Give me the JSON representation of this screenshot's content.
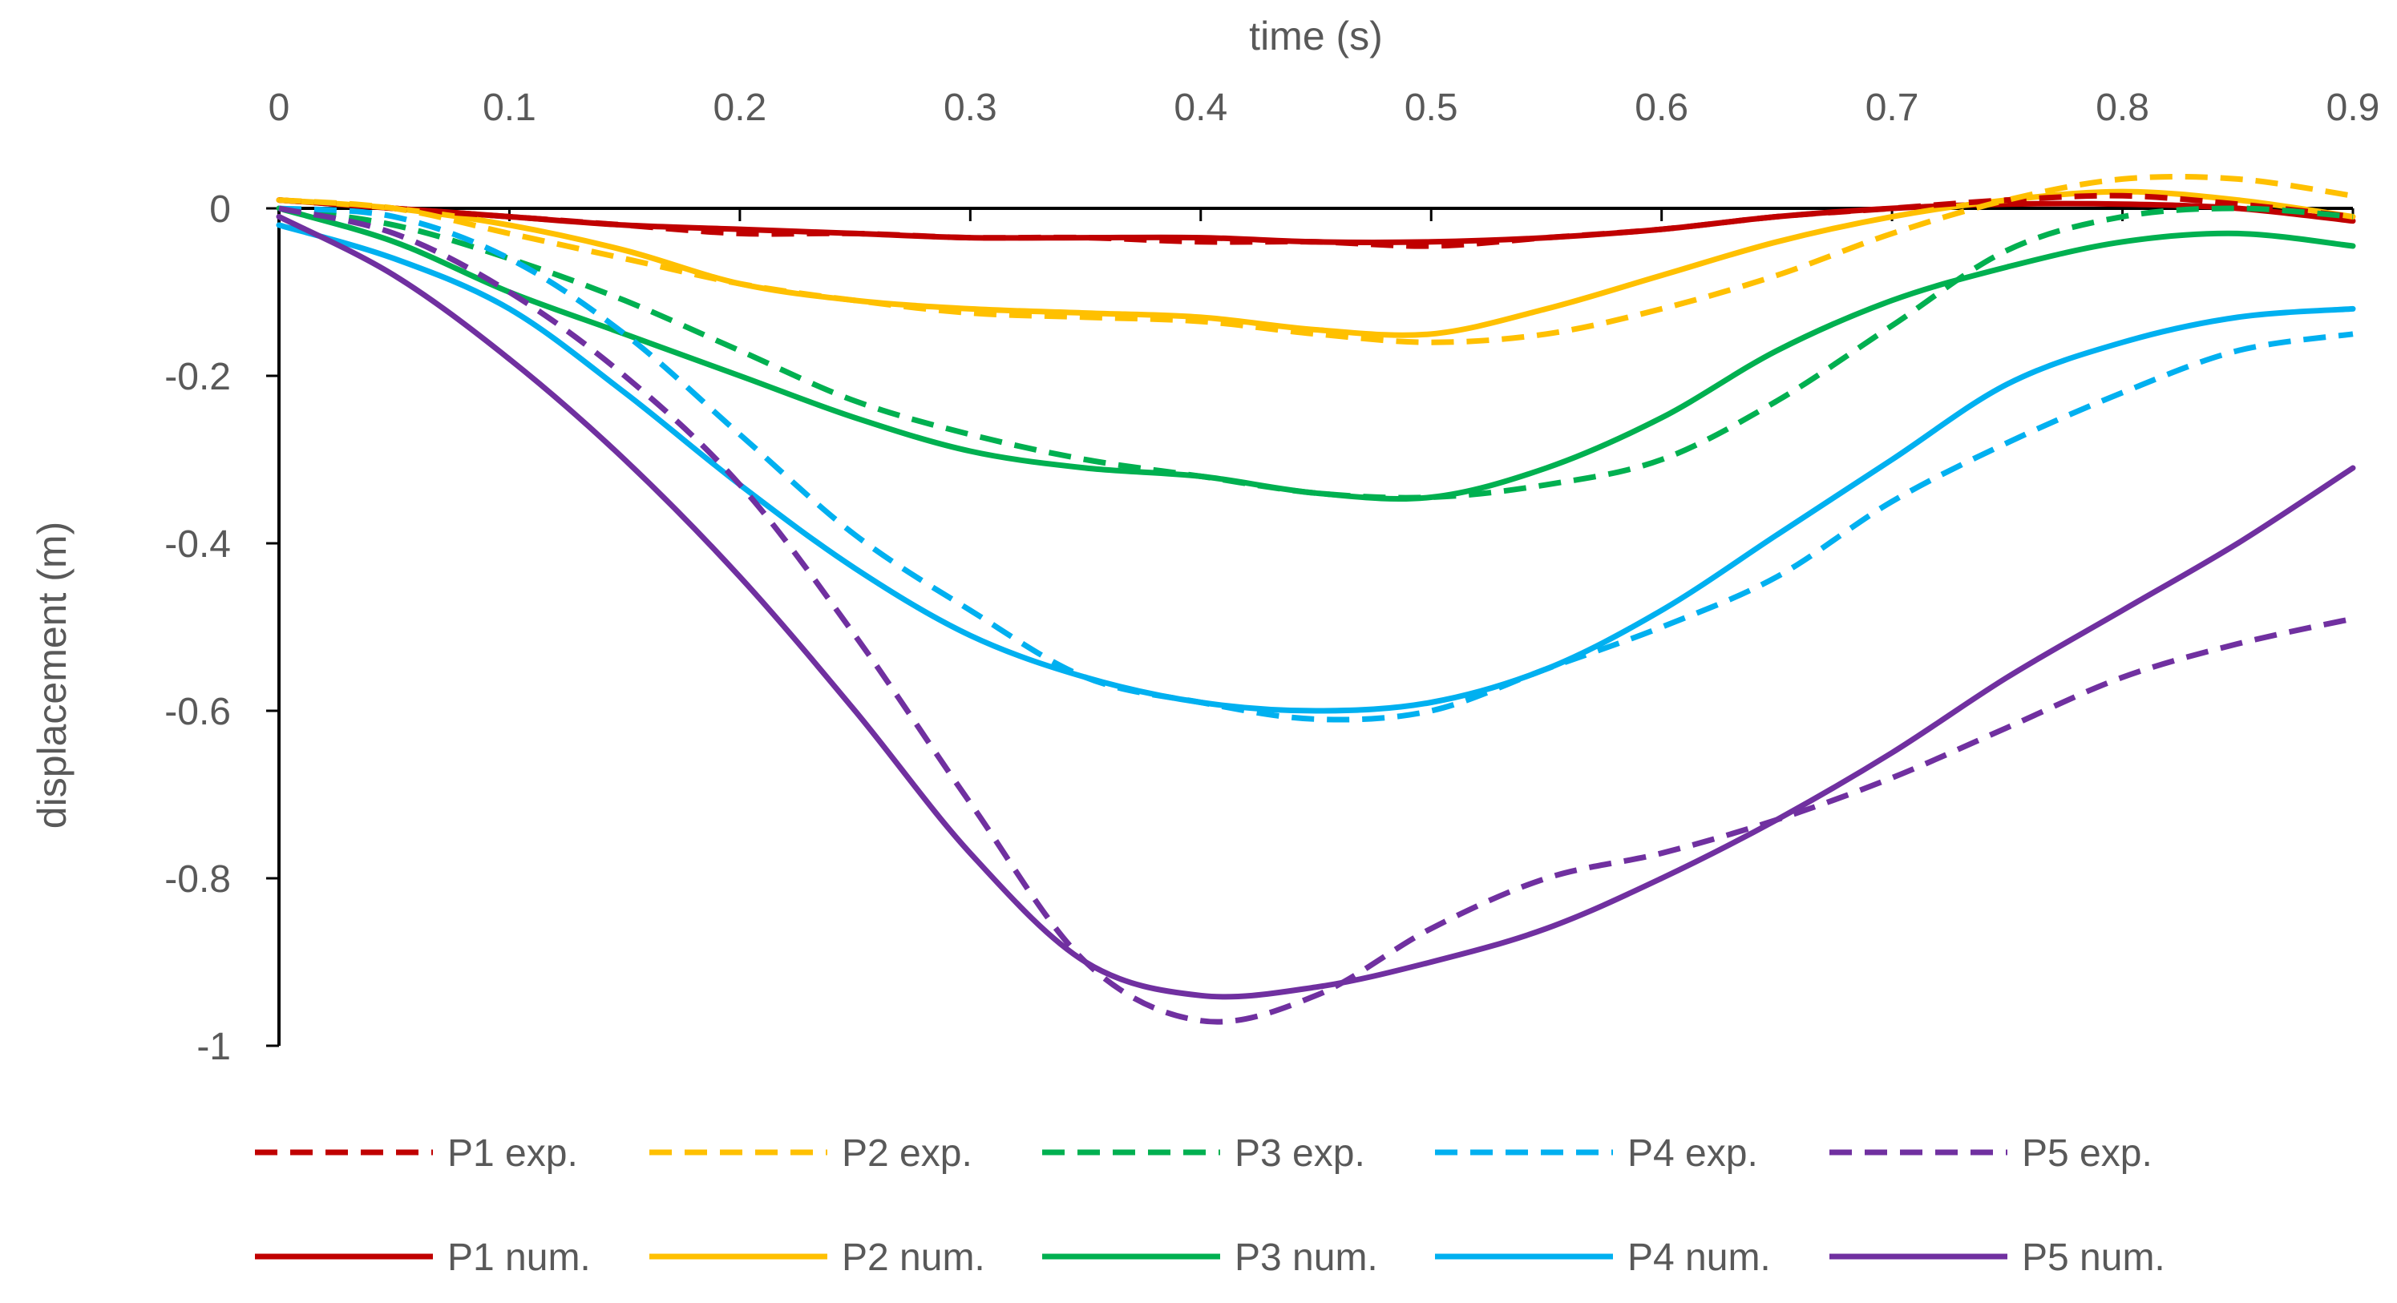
{
  "chart_data": {
    "type": "line",
    "title": "",
    "xlabel": "time (s)",
    "ylabel": "displacement (m)",
    "xlim": [
      0,
      0.9
    ],
    "ylim": [
      -1,
      0
    ],
    "x_ticks": [
      "0",
      "0.1",
      "0.2",
      "0.3",
      "0.4",
      "0.5",
      "0.6",
      "0.7",
      "0.8",
      "0.9"
    ],
    "y_ticks": [
      "0",
      "-0.2",
      "-0.4",
      "-0.6",
      "-0.8",
      "-1"
    ],
    "x_axis_position": "top",
    "grid": false,
    "legend_position": "bottom",
    "series": [
      {
        "name": "P1 exp.",
        "color": "#C00000",
        "style": "dashed",
        "x": [
          0,
          0.05,
          0.1,
          0.15,
          0.2,
          0.25,
          0.3,
          0.35,
          0.4,
          0.45,
          0.5,
          0.55,
          0.6,
          0.65,
          0.7,
          0.75,
          0.8,
          0.85,
          0.9
        ],
        "y": [
          0.01,
          0.0,
          -0.01,
          -0.02,
          -0.03,
          -0.03,
          -0.035,
          -0.035,
          -0.04,
          -0.04,
          -0.045,
          -0.035,
          -0.025,
          -0.01,
          0.0,
          0.01,
          0.015,
          0.005,
          -0.01
        ]
      },
      {
        "name": "P2 exp.",
        "color": "#FFC000",
        "style": "dashed",
        "x": [
          0,
          0.05,
          0.1,
          0.15,
          0.2,
          0.25,
          0.3,
          0.35,
          0.4,
          0.45,
          0.5,
          0.55,
          0.6,
          0.65,
          0.7,
          0.75,
          0.8,
          0.85,
          0.9
        ],
        "y": [
          0.01,
          0.0,
          -0.03,
          -0.06,
          -0.09,
          -0.11,
          -0.125,
          -0.13,
          -0.135,
          -0.15,
          -0.16,
          -0.15,
          -0.12,
          -0.08,
          -0.03,
          0.01,
          0.035,
          0.035,
          0.015
        ]
      },
      {
        "name": "P3 exp.",
        "color": "#00B050",
        "style": "dashed",
        "x": [
          0,
          0.05,
          0.1,
          0.15,
          0.2,
          0.25,
          0.3,
          0.35,
          0.4,
          0.45,
          0.5,
          0.55,
          0.6,
          0.65,
          0.7,
          0.75,
          0.8,
          0.85,
          0.9
        ],
        "y": [
          0.0,
          -0.02,
          -0.06,
          -0.11,
          -0.17,
          -0.23,
          -0.27,
          -0.3,
          -0.32,
          -0.34,
          -0.345,
          -0.33,
          -0.3,
          -0.23,
          -0.14,
          -0.05,
          -0.01,
          0.0,
          -0.01
        ]
      },
      {
        "name": "P4 exp.",
        "color": "#00B0F0",
        "style": "dashed",
        "x": [
          0,
          0.05,
          0.1,
          0.15,
          0.2,
          0.25,
          0.3,
          0.35,
          0.4,
          0.45,
          0.5,
          0.55,
          0.6,
          0.65,
          0.7,
          0.75,
          0.8,
          0.85,
          0.9
        ],
        "y": [
          0.0,
          -0.01,
          -0.06,
          -0.15,
          -0.27,
          -0.39,
          -0.48,
          -0.56,
          -0.59,
          -0.61,
          -0.6,
          -0.55,
          -0.5,
          -0.44,
          -0.35,
          -0.28,
          -0.22,
          -0.17,
          -0.15
        ]
      },
      {
        "name": "P5 exp.",
        "color": "#7030A0",
        "style": "dashed",
        "x": [
          0,
          0.05,
          0.1,
          0.15,
          0.2,
          0.25,
          0.3,
          0.35,
          0.4,
          0.45,
          0.5,
          0.55,
          0.6,
          0.65,
          0.7,
          0.75,
          0.8,
          0.85,
          0.9
        ],
        "y": [
          0.0,
          -0.03,
          -0.1,
          -0.2,
          -0.33,
          -0.51,
          -0.71,
          -0.9,
          -0.97,
          -0.94,
          -0.86,
          -0.8,
          -0.77,
          -0.73,
          -0.68,
          -0.62,
          -0.56,
          -0.52,
          -0.49
        ]
      },
      {
        "name": "P1 num.",
        "color": "#C00000",
        "style": "solid",
        "x": [
          0,
          0.05,
          0.1,
          0.15,
          0.2,
          0.25,
          0.3,
          0.35,
          0.4,
          0.45,
          0.5,
          0.55,
          0.6,
          0.65,
          0.7,
          0.75,
          0.8,
          0.85,
          0.9
        ],
        "y": [
          0.01,
          0.0,
          -0.01,
          -0.02,
          -0.025,
          -0.03,
          -0.035,
          -0.035,
          -0.035,
          -0.04,
          -0.04,
          -0.035,
          -0.025,
          -0.01,
          0.0,
          0.005,
          0.005,
          0.0,
          -0.015
        ]
      },
      {
        "name": "P2 num.",
        "color": "#FFC000",
        "style": "solid",
        "x": [
          0,
          0.05,
          0.1,
          0.15,
          0.2,
          0.25,
          0.3,
          0.35,
          0.4,
          0.45,
          0.5,
          0.55,
          0.6,
          0.65,
          0.7,
          0.75,
          0.8,
          0.85,
          0.9
        ],
        "y": [
          0.01,
          0.0,
          -0.02,
          -0.05,
          -0.09,
          -0.11,
          -0.12,
          -0.125,
          -0.13,
          -0.145,
          -0.15,
          -0.12,
          -0.08,
          -0.04,
          -0.01,
          0.01,
          0.02,
          0.01,
          -0.01
        ]
      },
      {
        "name": "P3 num.",
        "color": "#00B050",
        "style": "solid",
        "x": [
          0,
          0.05,
          0.1,
          0.15,
          0.2,
          0.25,
          0.3,
          0.35,
          0.4,
          0.45,
          0.5,
          0.55,
          0.6,
          0.65,
          0.7,
          0.75,
          0.8,
          0.85,
          0.9
        ],
        "y": [
          0.0,
          -0.04,
          -0.1,
          -0.15,
          -0.2,
          -0.25,
          -0.29,
          -0.31,
          -0.32,
          -0.34,
          -0.345,
          -0.31,
          -0.25,
          -0.17,
          -0.11,
          -0.07,
          -0.04,
          -0.03,
          -0.045
        ]
      },
      {
        "name": "P4 num.",
        "color": "#00B0F0",
        "style": "solid",
        "x": [
          0,
          0.05,
          0.1,
          0.15,
          0.2,
          0.25,
          0.3,
          0.35,
          0.4,
          0.45,
          0.5,
          0.55,
          0.6,
          0.65,
          0.7,
          0.75,
          0.8,
          0.85,
          0.9
        ],
        "y": [
          -0.02,
          -0.06,
          -0.12,
          -0.22,
          -0.33,
          -0.43,
          -0.51,
          -0.56,
          -0.59,
          -0.6,
          -0.59,
          -0.55,
          -0.48,
          -0.39,
          -0.3,
          -0.21,
          -0.16,
          -0.13,
          -0.12
        ]
      },
      {
        "name": "P5 num.",
        "color": "#7030A0",
        "style": "solid",
        "x": [
          0,
          0.05,
          0.1,
          0.15,
          0.2,
          0.25,
          0.3,
          0.35,
          0.4,
          0.45,
          0.5,
          0.55,
          0.6,
          0.65,
          0.7,
          0.75,
          0.8,
          0.85,
          0.9
        ],
        "y": [
          -0.01,
          -0.08,
          -0.18,
          -0.3,
          -0.44,
          -0.6,
          -0.77,
          -0.9,
          -0.94,
          -0.93,
          -0.9,
          -0.86,
          -0.8,
          -0.73,
          -0.65,
          -0.56,
          -0.48,
          -0.4,
          -0.31
        ]
      }
    ]
  }
}
